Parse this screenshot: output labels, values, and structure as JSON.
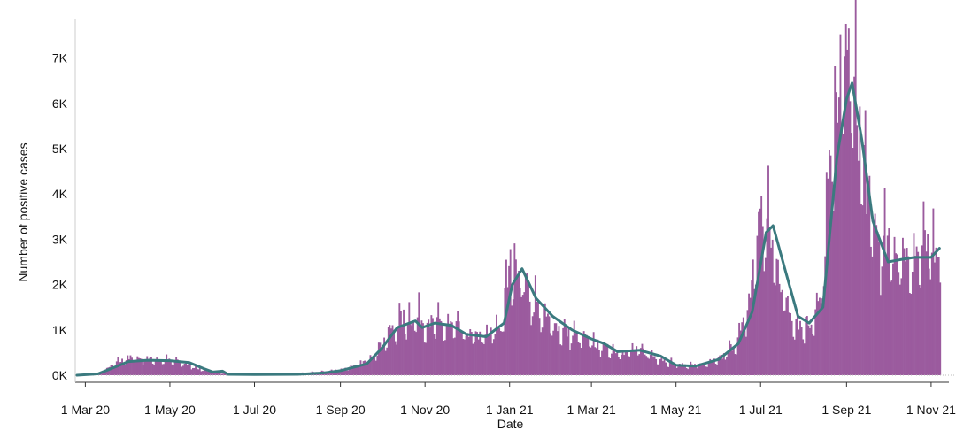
{
  "chart_data": {
    "type": "bar",
    "xlabel": "Date",
    "ylabel": "Number of positive cases",
    "ylim": [
      0,
      7500
    ],
    "y_ticks": [
      {
        "value": 0,
        "label": "0K"
      },
      {
        "value": 1000,
        "label": "1K"
      },
      {
        "value": 2000,
        "label": "2K"
      },
      {
        "value": 3000,
        "label": "3K"
      },
      {
        "value": 4000,
        "label": "4K"
      },
      {
        "value": 5000,
        "label": "5K"
      },
      {
        "value": 6000,
        "label": "6K"
      },
      {
        "value": 7000,
        "label": "7K"
      }
    ],
    "x_ticks": [
      {
        "date": "2020-03-01",
        "label": "1 Mar 20"
      },
      {
        "date": "2020-05-01",
        "label": "1 May 20"
      },
      {
        "date": "2020-07-01",
        "label": "1 Jul 20"
      },
      {
        "date": "2020-09-01",
        "label": "1 Sep 20"
      },
      {
        "date": "2020-11-01",
        "label": "1 Nov 20"
      },
      {
        "date": "2021-01-01",
        "label": "1 Jan 21"
      },
      {
        "date": "2021-03-01",
        "label": "1 Mar 21"
      },
      {
        "date": "2021-05-01",
        "label": "1 May 21"
      },
      {
        "date": "2021-07-01",
        "label": "1 Jul 21"
      },
      {
        "date": "2021-09-01",
        "label": "1 Sep 21"
      },
      {
        "date": "2021-11-01",
        "label": "1 Nov 21"
      }
    ],
    "x_range": [
      "2020-02-24",
      "2021-11-10"
    ],
    "grid": false,
    "colors": {
      "bars": "#9b5b9e",
      "trend": "#3b7a7f"
    },
    "series": [
      {
        "type": "bar",
        "frequency": "daily",
        "start": "2020-02-24",
        "anchors": [
          [
            "2020-02-24",
            0
          ],
          [
            "2020-03-10",
            40
          ],
          [
            "2020-03-25",
            300
          ],
          [
            "2020-04-01",
            380
          ],
          [
            "2020-04-15",
            360
          ],
          [
            "2020-05-01",
            320
          ],
          [
            "2020-05-10",
            280
          ],
          [
            "2020-05-20",
            160
          ],
          [
            "2020-06-01",
            60
          ],
          [
            "2020-06-15",
            30
          ],
          [
            "2020-07-15",
            20
          ],
          [
            "2020-08-01",
            40
          ],
          [
            "2020-08-20",
            80
          ],
          [
            "2020-09-01",
            130
          ],
          [
            "2020-09-15",
            230
          ],
          [
            "2020-09-25",
            500
          ],
          [
            "2020-10-05",
            900
          ],
          [
            "2020-10-15",
            1250
          ],
          [
            "2020-10-25",
            1300
          ],
          [
            "2020-11-05",
            1150
          ],
          [
            "2020-11-20",
            1100
          ],
          [
            "2020-12-01",
            900
          ],
          [
            "2020-12-15",
            850
          ],
          [
            "2020-12-25",
            1100
          ],
          [
            "2021-01-01",
            2450
          ],
          [
            "2021-01-05",
            2550
          ],
          [
            "2021-01-12",
            2000
          ],
          [
            "2021-01-25",
            1300
          ],
          [
            "2021-02-10",
            950
          ],
          [
            "2021-02-25",
            800
          ],
          [
            "2021-03-10",
            600
          ],
          [
            "2021-03-25",
            520
          ],
          [
            "2021-04-05",
            560
          ],
          [
            "2021-04-15",
            420
          ],
          [
            "2021-05-01",
            230
          ],
          [
            "2021-05-15",
            220
          ],
          [
            "2021-05-25",
            260
          ],
          [
            "2021-06-05",
            450
          ],
          [
            "2021-06-15",
            850
          ],
          [
            "2021-06-22",
            1500
          ],
          [
            "2021-06-27",
            2900
          ],
          [
            "2021-07-01",
            3600
          ],
          [
            "2021-07-05",
            3400
          ],
          [
            "2021-07-12",
            2500
          ],
          [
            "2021-07-20",
            1500
          ],
          [
            "2021-07-30",
            1100
          ],
          [
            "2021-08-05",
            1200
          ],
          [
            "2021-08-13",
            1600
          ],
          [
            "2021-08-18",
            4000
          ],
          [
            "2021-08-25",
            6500
          ],
          [
            "2021-09-01",
            7100
          ],
          [
            "2021-09-06",
            6400
          ],
          [
            "2021-09-12",
            5000
          ],
          [
            "2021-09-18",
            3500
          ],
          [
            "2021-09-24",
            3000
          ],
          [
            "2021-10-01",
            2800
          ],
          [
            "2021-10-10",
            2700
          ],
          [
            "2021-10-20",
            2700
          ],
          [
            "2021-11-01",
            2800
          ],
          [
            "2021-11-07",
            3300
          ]
        ]
      },
      {
        "type": "line",
        "points": [
          [
            "2020-02-24",
            0
          ],
          [
            "2020-03-10",
            30
          ],
          [
            "2020-03-20",
            150
          ],
          [
            "2020-04-01",
            300
          ],
          [
            "2020-04-15",
            330
          ],
          [
            "2020-05-01",
            320
          ],
          [
            "2020-05-15",
            280
          ],
          [
            "2020-05-25",
            150
          ],
          [
            "2020-06-01",
            70
          ],
          [
            "2020-06-08",
            90
          ],
          [
            "2020-06-12",
            20
          ],
          [
            "2020-07-01",
            15
          ],
          [
            "2020-08-01",
            20
          ],
          [
            "2020-08-20",
            50
          ],
          [
            "2020-09-01",
            100
          ],
          [
            "2020-09-20",
            250
          ],
          [
            "2020-10-01",
            600
          ],
          [
            "2020-10-12",
            1050
          ],
          [
            "2020-10-25",
            1200
          ],
          [
            "2020-10-30",
            1050
          ],
          [
            "2020-11-08",
            1150
          ],
          [
            "2020-11-20",
            1100
          ],
          [
            "2020-12-01",
            900
          ],
          [
            "2020-12-15",
            850
          ],
          [
            "2020-12-28",
            1150
          ],
          [
            "2021-01-03",
            2000
          ],
          [
            "2021-01-10",
            2350
          ],
          [
            "2021-01-20",
            1700
          ],
          [
            "2021-02-01",
            1300
          ],
          [
            "2021-02-15",
            1000
          ],
          [
            "2021-03-01",
            800
          ],
          [
            "2021-03-10",
            700
          ],
          [
            "2021-03-20",
            520
          ],
          [
            "2021-04-05",
            550
          ],
          [
            "2021-04-20",
            420
          ],
          [
            "2021-05-01",
            220
          ],
          [
            "2021-05-15",
            200
          ],
          [
            "2021-06-01",
            350
          ],
          [
            "2021-06-15",
            700
          ],
          [
            "2021-06-25",
            1400
          ],
          [
            "2021-07-05",
            3150
          ],
          [
            "2021-07-10",
            3300
          ],
          [
            "2021-07-18",
            2400
          ],
          [
            "2021-07-28",
            1300
          ],
          [
            "2021-08-05",
            1150
          ],
          [
            "2021-08-15",
            1500
          ],
          [
            "2021-08-25",
            4800
          ],
          [
            "2021-09-01",
            6100
          ],
          [
            "2021-09-05",
            6450
          ],
          [
            "2021-09-12",
            5200
          ],
          [
            "2021-09-20",
            3400
          ],
          [
            "2021-10-01",
            2500
          ],
          [
            "2021-10-10",
            2550
          ],
          [
            "2021-10-20",
            2600
          ],
          [
            "2021-11-01",
            2600
          ],
          [
            "2021-11-07",
            2800
          ]
        ]
      }
    ]
  }
}
